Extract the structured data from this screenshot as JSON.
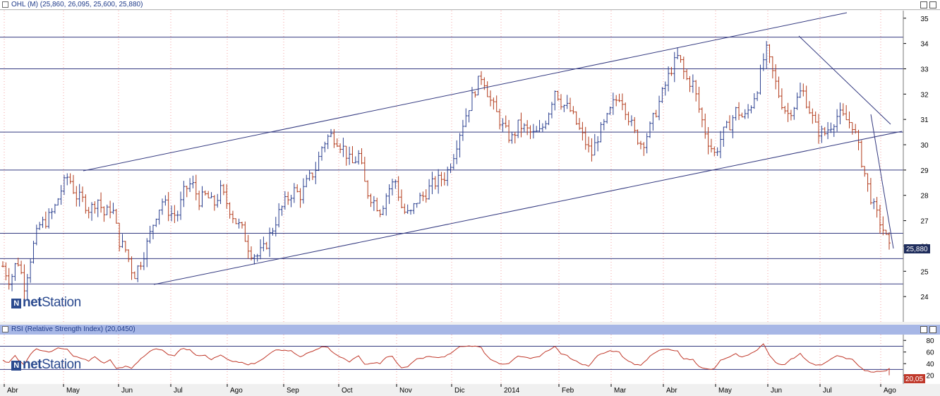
{
  "header": {
    "title": "OHL (M) (25,860, 26,095, 25,600, 25,880)",
    "rsi_title": "RSI (Relative Strength Index) (20,0450)",
    "last_price_label": "25,880",
    "rsi_value_label": "20,05",
    "logo_bold": "net",
    "logo_rest": "Station"
  },
  "colors": {
    "up": "#2a3f8f",
    "down": "#b23a1a",
    "rsi": "#c0392b",
    "grid": "#f3a0a0",
    "lines": "#343a80"
  },
  "chart_data": [
    {
      "type": "candlestick-ohlc",
      "title": "OHL (M) (25,860, 26,095, 25,600, 25,880)",
      "y_ticks": [
        24,
        25,
        26,
        27,
        28,
        29,
        30,
        31,
        32,
        33,
        34,
        35
      ],
      "ylim": [
        23.0,
        35.3
      ],
      "x_months": [
        "Abr",
        "May",
        "Jun",
        "Jul",
        "Ago",
        "Sep",
        "Oct",
        "Nov",
        "Dic",
        "2014",
        "Feb",
        "Mar",
        "Abr",
        "May",
        "Jun",
        "Jul",
        "Ago"
      ],
      "last": 25.88,
      "horizontal_levels": [
        34.25,
        33.0,
        30.5,
        29.0,
        26.5,
        25.5,
        24.5
      ],
      "trendlines": [
        {
          "from": [
            "May",
            29.0
          ],
          "to": [
            "Jul",
            35.2
          ]
        },
        {
          "from": [
            "Jun",
            24.5
          ],
          "to": [
            "Ago",
            30.5
          ]
        },
        {
          "from": [
            "Jun",
            34.3
          ],
          "to": [
            "Jul",
            30.8
          ]
        },
        {
          "from": [
            "Jul",
            31.3
          ],
          "to": [
            "Ago",
            25.9
          ]
        }
      ],
      "close_path": [
        25.2,
        24.6,
        25.5,
        24.4,
        25.8,
        26.8,
        27.0,
        27.4,
        28.2,
        28.8,
        28.0,
        27.8,
        27.4,
        27.9,
        27.2,
        27.6,
        26.2,
        25.8,
        24.8,
        25.4,
        26.2,
        27.2,
        27.8,
        27.3,
        27.2,
        28.2,
        28.5,
        27.8,
        28.0,
        27.6,
        28.2,
        27.6,
        27.0,
        26.6,
        25.8,
        25.6,
        25.9,
        26.6,
        27.3,
        27.8,
        28.2,
        28.0,
        28.6,
        29.0,
        30.0,
        30.4,
        30.2,
        29.8,
        29.2,
        29.6,
        28.2,
        27.8,
        27.4,
        28.2,
        28.6,
        27.4,
        27.2,
        27.8,
        28.0,
        28.4,
        28.6,
        28.8,
        29.6,
        30.6,
        31.4,
        32.2,
        32.8,
        31.8,
        31.2,
        30.6,
        30.2,
        30.8,
        30.6,
        30.4,
        30.5,
        31.2,
        32.2,
        31.6,
        31.4,
        30.8,
        30.2,
        29.6,
        30.4,
        30.9,
        31.6,
        32.0,
        31.2,
        30.4,
        30.0,
        30.6,
        31.4,
        32.2,
        33.0,
        33.5,
        32.6,
        32.4,
        31.2,
        30.2,
        29.6,
        30.4,
        30.8,
        31.4,
        31.0,
        31.6,
        32.4,
        33.8,
        32.8,
        31.8,
        31.2,
        31.6,
        32.2,
        31.4,
        30.6,
        30.4,
        30.8,
        31.2,
        31.0,
        30.8,
        29.6,
        28.4,
        27.4,
        26.8,
        25.9
      ]
    },
    {
      "type": "line",
      "title": "RSI (Relative Strength Index) (20,0450)",
      "y_ticks": [
        20,
        40,
        60,
        80
      ],
      "ylim": [
        5,
        90
      ],
      "last": 20.05
    }
  ]
}
